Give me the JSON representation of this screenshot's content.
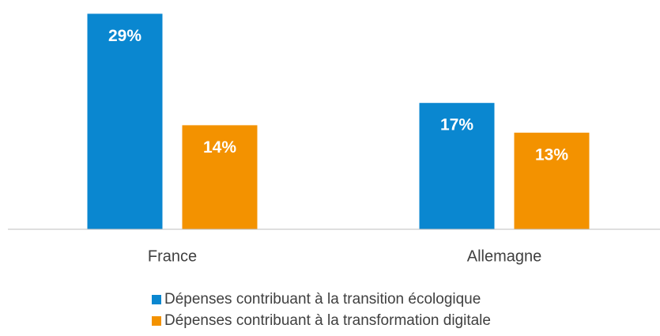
{
  "chart_data": {
    "type": "bar",
    "categories": [
      "France",
      "Allemagne"
    ],
    "series": [
      {
        "name": "Dépenses contribuant à la transition écologique",
        "color": "#0a87d0",
        "values": [
          29,
          17
        ],
        "value_labels": [
          "29%",
          "17%"
        ]
      },
      {
        "name": "Dépenses contribuant à la transformation digitale",
        "color": "#f39200",
        "values": [
          14,
          13
        ],
        "value_labels": [
          "14%",
          "13%"
        ]
      }
    ],
    "ylim": [
      0,
      30
    ]
  }
}
